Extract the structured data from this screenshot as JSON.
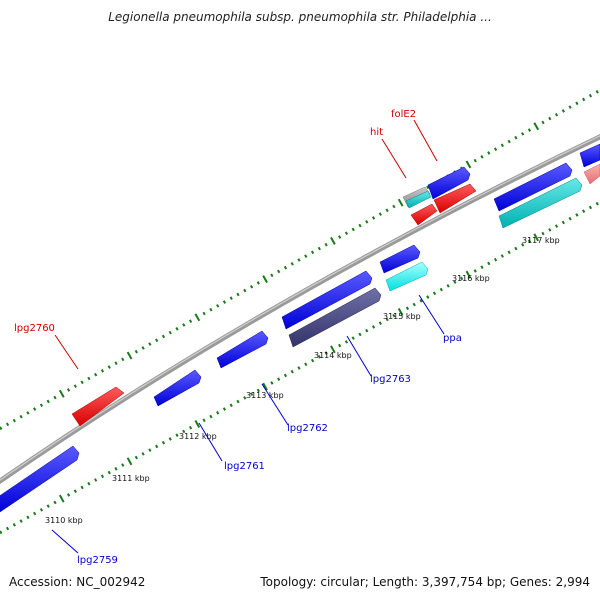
{
  "title": "Legionella pneumophila subsp. pneumophila str. Philadelphia ...",
  "footer": {
    "accession": "Accession: NC_002942",
    "summary": "Topology: circular; Length: 3,397,754 bp; Genes: 2,994"
  },
  "colors": {
    "backbone": "#8a8a8a",
    "forward_gene": "#0000ee",
    "reverse_gene": "#ee0000",
    "cyan_gene": "#00cccc",
    "bright_cyan_gene": "#00eeee",
    "dark_gene": "#45457a",
    "pink_gene": "#ee8888",
    "tick": "#1a7a1a",
    "label_forward": "#0000cc",
    "label_reverse": "#cc0000"
  },
  "ticks": [
    "3110 kbp",
    "3111 kbp",
    "3112 kbp",
    "3113 kbp",
    "3114 kbp",
    "3115 kbp",
    "3116 kbp",
    "3117 kbp"
  ],
  "gene_labels": [
    {
      "text": "lpg2759",
      "strand": "forward"
    },
    {
      "text": "lpg2760",
      "strand": "reverse"
    },
    {
      "text": "lpg2761",
      "strand": "forward"
    },
    {
      "text": "lpg2762",
      "strand": "forward"
    },
    {
      "text": "lpg2763",
      "strand": "forward"
    },
    {
      "text": "ppa",
      "strand": "forward"
    },
    {
      "text": "hit",
      "strand": "reverse"
    },
    {
      "text": "folE2",
      "strand": "reverse"
    }
  ]
}
